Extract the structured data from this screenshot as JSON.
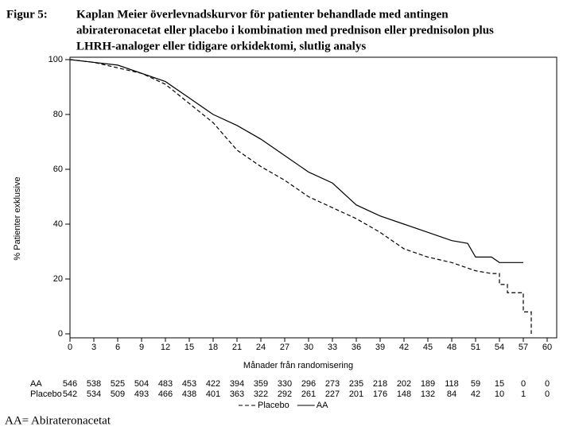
{
  "chart_data": {
    "type": "line",
    "figure_label": "Figur 5:",
    "title": [
      "Kaplan Meier överlevnadskurvor för patienter behandlade med antingen",
      "abirateronacetat eller placebo i kombination med prednison eller prednisolon plus",
      "LHRH-analoger eller tidigare orkidektomi, slutlig analys"
    ],
    "x_label": "Månader från randomisering",
    "y_label": "% Patienter exklusive",
    "xlim": [
      0,
      60
    ],
    "ylim": [
      0,
      100
    ],
    "xticks": [
      0,
      3,
      6,
      9,
      12,
      15,
      18,
      21,
      24,
      27,
      30,
      33,
      36,
      39,
      42,
      45,
      48,
      51,
      54,
      57,
      60
    ],
    "yticks": [
      0,
      20,
      40,
      60,
      80,
      100
    ],
    "series": [
      {
        "name": "Placebo",
        "color": "#000000",
        "dash": true,
        "x": [
          0,
          3,
          6,
          9,
          12,
          15,
          18,
          21,
          24,
          27,
          30,
          33,
          36,
          39,
          42,
          45,
          48,
          51,
          53,
          54,
          54,
          55,
          55,
          57,
          57,
          58,
          58
        ],
        "values": [
          100,
          99,
          97,
          95,
          91,
          84,
          77,
          67,
          61,
          56,
          50,
          46,
          42,
          37,
          31,
          28,
          26,
          23,
          22,
          22,
          18,
          18,
          15,
          15,
          8,
          8,
          0
        ]
      },
      {
        "name": "AA",
        "color": "#000000",
        "dash": false,
        "x": [
          0,
          3,
          6,
          9,
          12,
          15,
          18,
          21,
          24,
          27,
          30,
          33,
          36,
          39,
          42,
          45,
          48,
          50,
          51,
          53,
          54,
          57
        ],
        "values": [
          100,
          99,
          98,
          95,
          92,
          86,
          80,
          76,
          71,
          65,
          59,
          55,
          47,
          43,
          40,
          37,
          34,
          33,
          28,
          28,
          26,
          26
        ]
      }
    ],
    "risk_table": [
      {
        "label": "AA",
        "values": [
          546,
          538,
          525,
          504,
          483,
          453,
          422,
          394,
          359,
          330,
          296,
          273,
          235,
          218,
          202,
          189,
          118,
          59,
          15,
          0,
          0
        ]
      },
      {
        "label": "Placebo",
        "values": [
          542,
          534,
          509,
          493,
          466,
          438,
          401,
          363,
          322,
          292,
          261,
          227,
          201,
          176,
          148,
          132,
          84,
          42,
          10,
          1,
          0
        ]
      }
    ],
    "footnote": "AA= Abirateronacetat"
  }
}
